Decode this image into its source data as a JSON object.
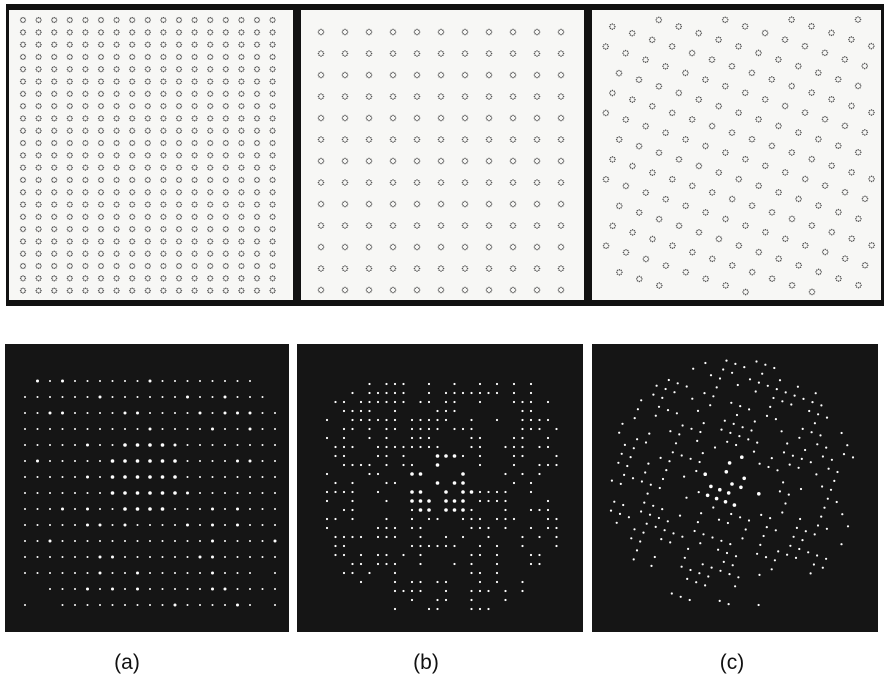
{
  "labels": {
    "a": "(a)",
    "b": "(b)",
    "c": "(c)"
  },
  "colors": {
    "mask_background": "#f7f7f5",
    "mask_dots": "#555555",
    "diffraction_background": "#151515",
    "diffraction_spots": "#ffffff"
  }
}
